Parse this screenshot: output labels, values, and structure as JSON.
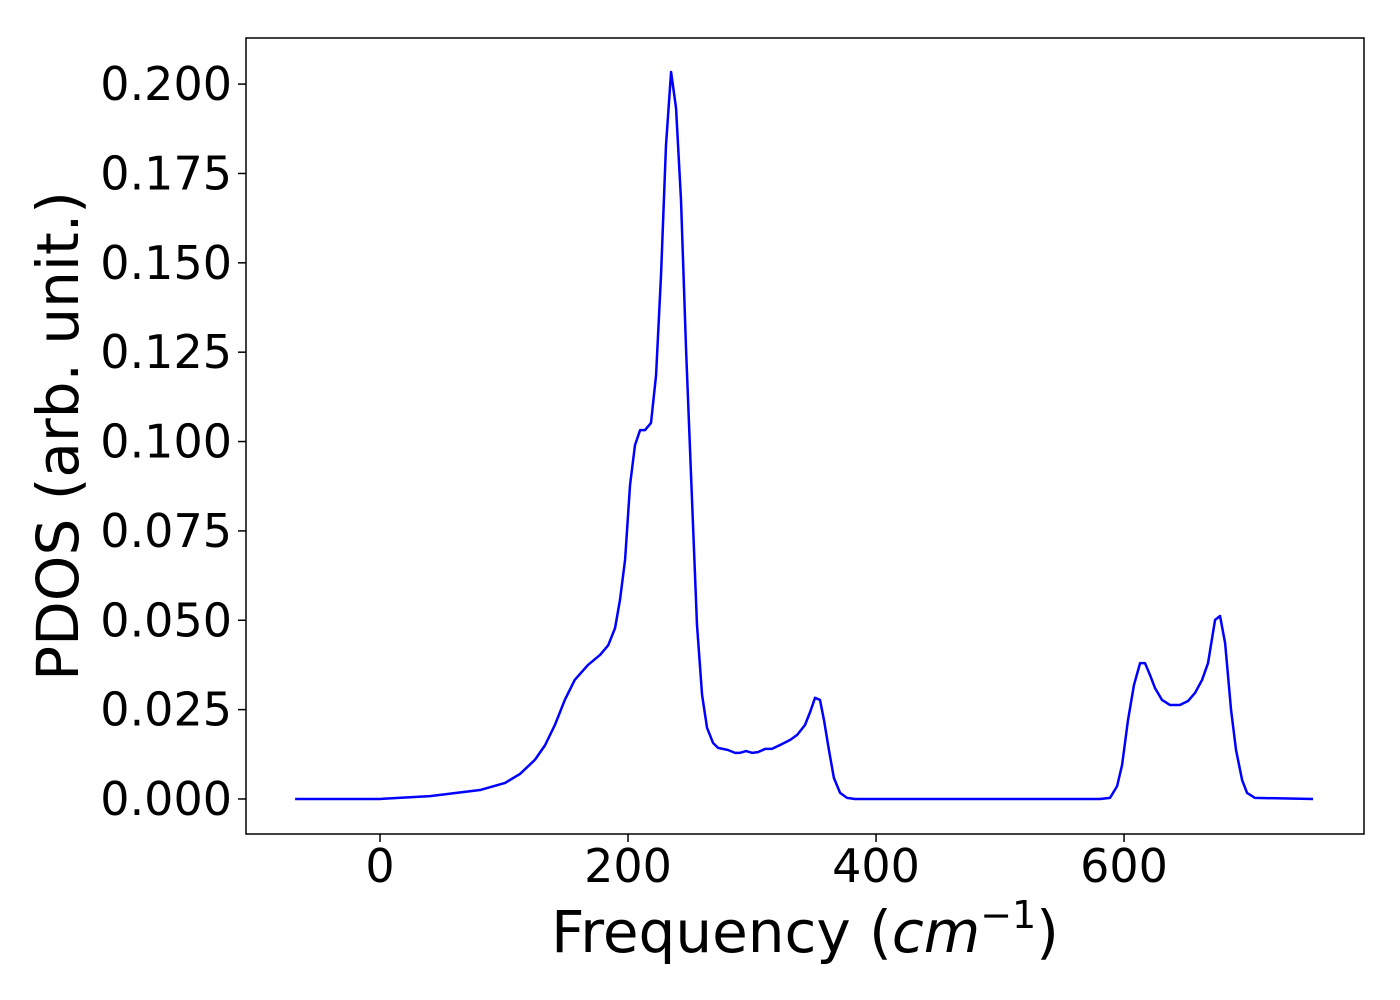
{
  "chart_data": {
    "type": "line",
    "xlabel": [
      "Frequency (",
      "cm",
      "−1",
      ")"
    ],
    "ylabel": "PDOS (arb. unit.)",
    "color": "#0000ff",
    "x": [
      -68.5,
      0,
      40.3,
      80.6,
      100.8,
      112.9,
      125,
      133,
      141,
      149,
      157,
      167.7,
      177.4,
      184,
      189.5,
      193.5,
      197.6,
      201.6,
      205.6,
      209.7,
      213.7,
      218.5,
      222.6,
      226.6,
      230.6,
      234.7,
      238.7,
      242.7,
      246.8,
      251.6,
      255.6,
      259.7,
      263.7,
      268.5,
      272.6,
      280.6,
      286.3,
      290.3,
      295.2,
      300,
      304.8,
      310.5,
      316,
      322.6,
      330.6,
      336.3,
      342.7,
      346.8,
      350.8,
      354.8,
      358,
      362,
      366,
      371,
      376.6,
      383,
      580.6,
      588.7,
      594.4,
      598.4,
      603.2,
      608,
      612.9,
      616.9,
      620.9,
      625,
      630.6,
      637,
      645,
      651.6,
      657.3,
      662.9,
      667.7,
      673.4,
      677.4,
      681.5,
      686.3,
      690.3,
      695.2,
      699.2,
      705.6,
      752.4
    ],
    "values": [
      0,
      0,
      0.0008,
      0.0025,
      0.0045,
      0.007,
      0.011,
      0.015,
      0.0207,
      0.0277,
      0.0333,
      0.0375,
      0.0403,
      0.043,
      0.0478,
      0.0557,
      0.0669,
      0.0878,
      0.099,
      0.1032,
      0.1032,
      0.1052,
      0.1186,
      0.1466,
      0.1829,
      0.2034,
      0.1933,
      0.1676,
      0.1256,
      0.0836,
      0.0487,
      0.0291,
      0.0199,
      0.0157,
      0.0143,
      0.0137,
      0.0129,
      0.0129,
      0.0134,
      0.0129,
      0.0131,
      0.014,
      0.014,
      0.0151,
      0.0165,
      0.0179,
      0.0207,
      0.0243,
      0.0283,
      0.0277,
      0.0221,
      0.0137,
      0.0059,
      0.0017,
      0.0003,
      0,
      0,
      0.0003,
      0.0036,
      0.0095,
      0.0221,
      0.0319,
      0.038,
      0.038,
      0.0347,
      0.031,
      0.0277,
      0.0263,
      0.0263,
      0.0274,
      0.0297,
      0.0333,
      0.038,
      0.0501,
      0.0512,
      0.0436,
      0.0249,
      0.0137,
      0.0053,
      0.0017,
      0.0003,
      0
    ],
    "xlim": [
      -108.1,
      793.5
    ],
    "xticks": [
      0,
      200,
      400,
      600
    ],
    "ylim": [
      -0.0098,
      0.2129
    ],
    "yticks": [
      {
        "value": 0,
        "label": "0.000"
      },
      {
        "value": 0.025,
        "label": "0.025"
      },
      {
        "value": 0.05,
        "label": "0.050"
      },
      {
        "value": 0.075,
        "label": "0.075"
      },
      {
        "value": 0.1,
        "label": "0.100"
      },
      {
        "value": 0.125,
        "label": "0.125"
      },
      {
        "value": 0.15,
        "label": "0.150"
      },
      {
        "value": 0.175,
        "label": "0.175"
      },
      {
        "value": 0.2,
        "label": "0.200"
      }
    ]
  }
}
